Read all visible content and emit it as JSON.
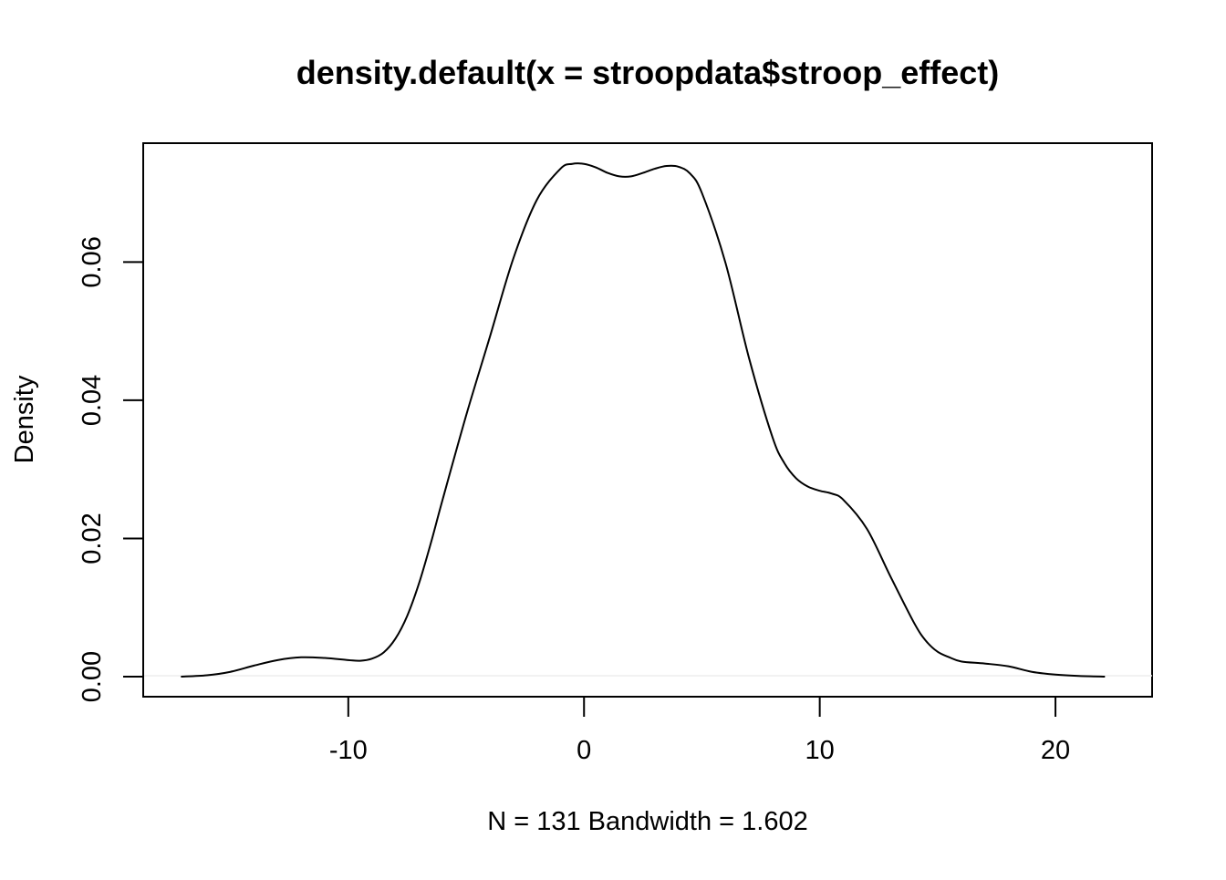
{
  "chart_data": {
    "type": "line",
    "title": "density.default(x = stroopdata$stroop_effect)",
    "xlabel": "N = 131   Bandwidth = 1.602",
    "ylabel": "Density",
    "xlim": [
      -18.7,
      24.1
    ],
    "ylim": [
      -0.0029,
      0.0772
    ],
    "x_ticks": [
      {
        "value": -10,
        "label": "-10"
      },
      {
        "value": 0,
        "label": "0"
      },
      {
        "value": 10,
        "label": "10"
      },
      {
        "value": 20,
        "label": "20"
      }
    ],
    "y_ticks": [
      {
        "value": 0.0,
        "label": "0.00"
      },
      {
        "value": 0.02,
        "label": "0.02"
      },
      {
        "value": 0.04,
        "label": "0.04"
      },
      {
        "value": 0.06,
        "label": "0.06"
      }
    ],
    "grid": false,
    "legend": "none",
    "series": [
      {
        "color": "#000000",
        "x": [
          -17.1,
          -16,
          -15,
          -14,
          -13,
          -12,
          -11,
          -10,
          -9.5,
          -9,
          -8.5,
          -8,
          -7.5,
          -7,
          -6.5,
          -6,
          -5,
          -4,
          -3,
          -2,
          -1,
          -0.5,
          0,
          0.5,
          1,
          1.5,
          2,
          2.5,
          3,
          3.5,
          4,
          4.5,
          5,
          6,
          7,
          8,
          8.5,
          9,
          9.5,
          10,
          10.5,
          11,
          12,
          13,
          14,
          14.5,
          15,
          15.5,
          16,
          17,
          18,
          19,
          20,
          21,
          22.1
        ],
        "y": [
          0.0,
          0.0002,
          0.0007,
          0.0016,
          0.0024,
          0.0028,
          0.0027,
          0.0024,
          0.0023,
          0.0026,
          0.0035,
          0.0055,
          0.0088,
          0.0135,
          0.0193,
          0.0256,
          0.0378,
          0.0491,
          0.0605,
          0.069,
          0.0735,
          0.0742,
          0.0742,
          0.0737,
          0.0729,
          0.0724,
          0.0724,
          0.0729,
          0.0735,
          0.0739,
          0.0738,
          0.0728,
          0.07,
          0.0599,
          0.0461,
          0.0346,
          0.0309,
          0.0287,
          0.0275,
          0.0269,
          0.0265,
          0.0256,
          0.0214,
          0.0145,
          0.0078,
          0.0052,
          0.0036,
          0.0028,
          0.0022,
          0.0019,
          0.0015,
          0.0007,
          0.0003,
          0.0001,
          0.0
        ]
      }
    ]
  }
}
